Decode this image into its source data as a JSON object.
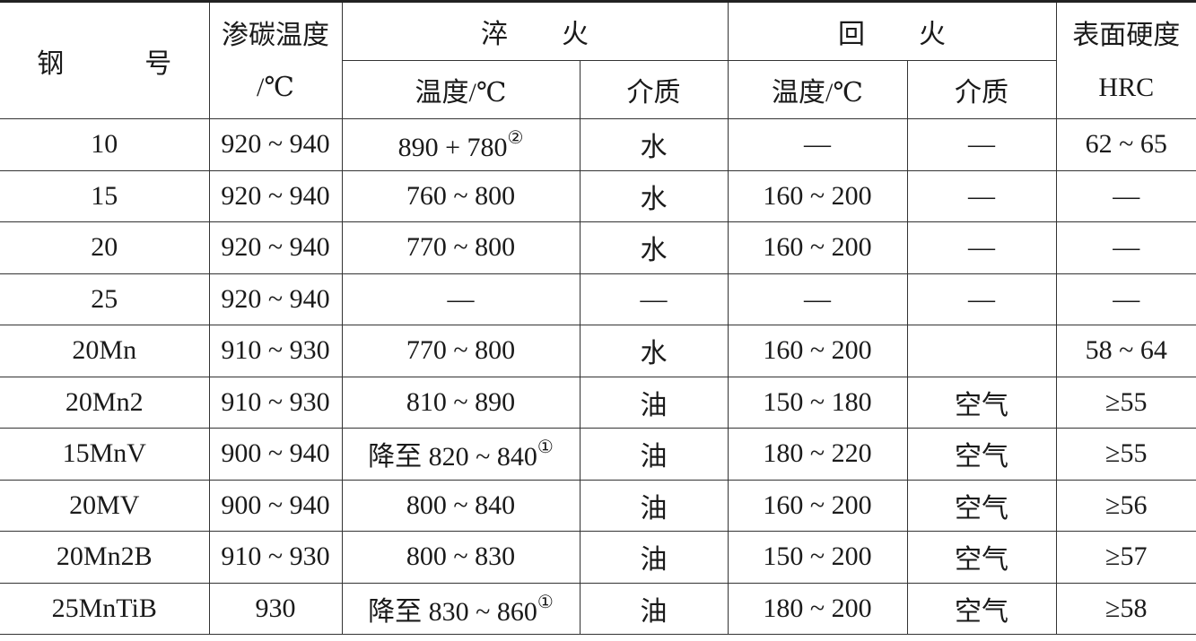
{
  "header": {
    "steel": "钢　　　号",
    "carburizing_temp": "渗碳温度",
    "carburizing_unit": "/℃",
    "quench": "淬　　火",
    "temper": "回　　火",
    "hardness": "表面硬度",
    "hardness_unit": "HRC",
    "quench_temp": "温度/℃",
    "quench_medium": "介质",
    "temper_temp": "温度/℃",
    "temper_medium": "介质"
  },
  "rows": [
    {
      "steel": "10",
      "carb": "920 ~ 940",
      "qtemp": "890 + 780",
      "qnote": "②",
      "qmed": "水",
      "ttemp": "—",
      "tmed": "—",
      "hrc": "62 ~ 65"
    },
    {
      "steel": "15",
      "carb": "920 ~ 940",
      "qtemp": "760 ~ 800",
      "qnote": "",
      "qmed": "水",
      "ttemp": "160 ~ 200",
      "tmed": "—",
      "hrc": "—"
    },
    {
      "steel": "20",
      "carb": "920 ~ 940",
      "qtemp": "770 ~ 800",
      "qnote": "",
      "qmed": "水",
      "ttemp": "160 ~ 200",
      "tmed": "—",
      "hrc": "—"
    },
    {
      "steel": "25",
      "carb": "920 ~ 940",
      "qtemp": "—",
      "qnote": "",
      "qmed": "—",
      "ttemp": "—",
      "tmed": "—",
      "hrc": "—"
    },
    {
      "steel": "20Mn",
      "carb": "910 ~ 930",
      "qtemp": "770 ~ 800",
      "qnote": "",
      "qmed": "水",
      "ttemp": "160 ~ 200",
      "tmed": "",
      "hrc": "58 ~ 64"
    },
    {
      "steel": "20Mn2",
      "carb": "910 ~ 930",
      "qtemp": "810 ~ 890",
      "qnote": "",
      "qmed": "油",
      "ttemp": "150 ~ 180",
      "tmed": "空气",
      "hrc": "≥55"
    },
    {
      "steel": "15MnV",
      "carb": "900 ~ 940",
      "qtemp": "降至 820 ~ 840",
      "qnote": "①",
      "qmed": "油",
      "ttemp": "180 ~ 220",
      "tmed": "空气",
      "hrc": "≥55"
    },
    {
      "steel": "20MV",
      "carb": "900 ~ 940",
      "qtemp": "800 ~ 840",
      "qnote": "",
      "qmed": "油",
      "ttemp": "160 ~ 200",
      "tmed": "空气",
      "hrc": "≥56"
    },
    {
      "steel": "20Mn2B",
      "carb": "910 ~ 930",
      "qtemp": "800 ~ 830",
      "qnote": "",
      "qmed": "油",
      "ttemp": "150 ~ 200",
      "tmed": "空气",
      "hrc": "≥57"
    },
    {
      "steel": "25MnTiB",
      "carb": "930",
      "qtemp": "降至 830 ~ 860",
      "qnote": "①",
      "qmed": "油",
      "ttemp": "180 ~ 200",
      "tmed": "空气",
      "hrc": "≥58"
    }
  ]
}
